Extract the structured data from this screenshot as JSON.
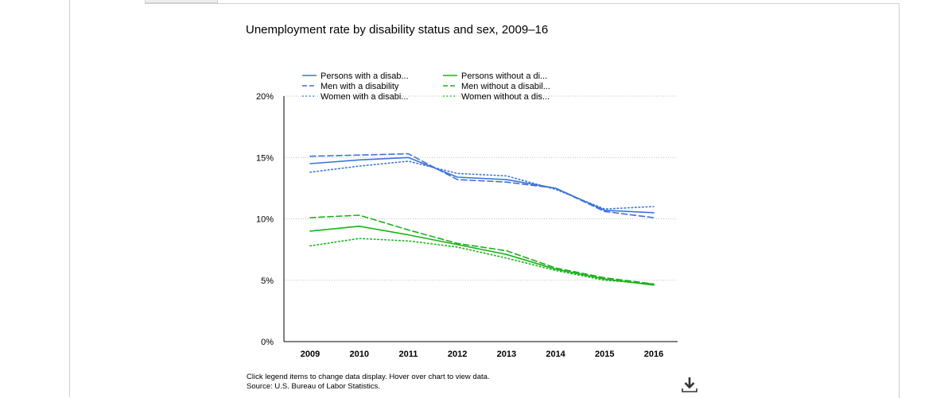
{
  "chart_data": {
    "type": "line",
    "title": "Unemployment rate by disability status and sex, 2009–16",
    "x": [
      "2009",
      "2010",
      "2011",
      "2012",
      "2013",
      "2014",
      "2015",
      "2016"
    ],
    "y_ticks": [
      "0%",
      "5%",
      "10%",
      "15%",
      "20%"
    ],
    "ylim": [
      0,
      20
    ],
    "grid": true,
    "legend_position": "top",
    "series": [
      {
        "name": "Persons with a disab...",
        "color": "#3b73d9",
        "dash": "solid",
        "values": [
          14.5,
          14.8,
          15.0,
          13.4,
          13.2,
          12.5,
          10.7,
          10.5
        ]
      },
      {
        "name": "Men with a disability",
        "color": "#3b73d9",
        "dash": "dashed",
        "values": [
          15.1,
          15.2,
          15.3,
          13.2,
          13.0,
          12.5,
          10.6,
          10.1
        ]
      },
      {
        "name": "Women with a disabi...",
        "color": "#3b73d9",
        "dash": "dotted",
        "values": [
          13.8,
          14.3,
          14.7,
          13.7,
          13.5,
          12.4,
          10.8,
          11.0
        ]
      },
      {
        "name": "Persons without a di...",
        "color": "#19b319",
        "dash": "solid",
        "values": [
          9.0,
          9.4,
          8.7,
          7.9,
          7.1,
          5.9,
          5.1,
          4.6
        ]
      },
      {
        "name": "Men without a disabil...",
        "color": "#19b319",
        "dash": "dashed",
        "values": [
          10.1,
          10.3,
          9.1,
          8.0,
          7.4,
          6.0,
          5.2,
          4.7
        ]
      },
      {
        "name": "Women without a dis...",
        "color": "#19b319",
        "dash": "dotted",
        "values": [
          7.8,
          8.4,
          8.2,
          7.7,
          6.8,
          5.8,
          5.0,
          4.7
        ]
      }
    ]
  },
  "notes": {
    "line1": "Click legend items to change data display. Hover over chart to view data.",
    "line2": "Source: U.S. Bureau of Labor Statistics."
  },
  "download_icon": "download-icon"
}
